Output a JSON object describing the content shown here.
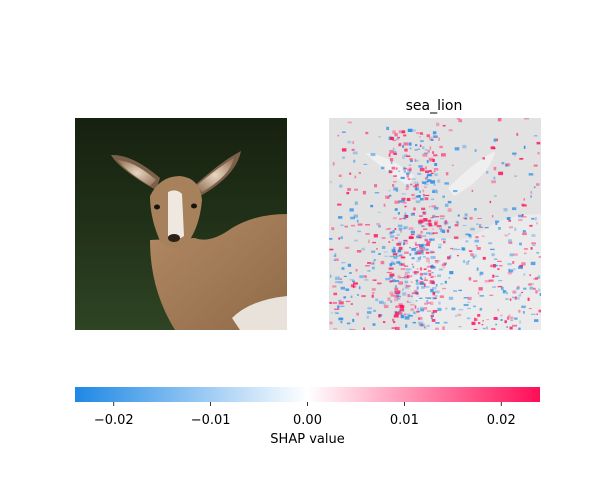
{
  "chart_data": {
    "type": "heatmap",
    "panels": [
      {
        "title": "",
        "content": "original-image"
      },
      {
        "title": "sea_lion",
        "content": "shap-overlay"
      }
    ],
    "colorbar": {
      "label": "SHAP value",
      "range": [
        -0.024,
        0.024
      ],
      "ticks": [
        -0.02,
        -0.01,
        0.0,
        0.01,
        0.02
      ],
      "tick_labels": [
        "−0.02",
        "−0.01",
        "0.00",
        "0.01",
        "0.02"
      ],
      "colors": {
        "negative": "#1e88e5",
        "neutral": "#ffffff",
        "positive": "#ff0d57"
      }
    }
  }
}
